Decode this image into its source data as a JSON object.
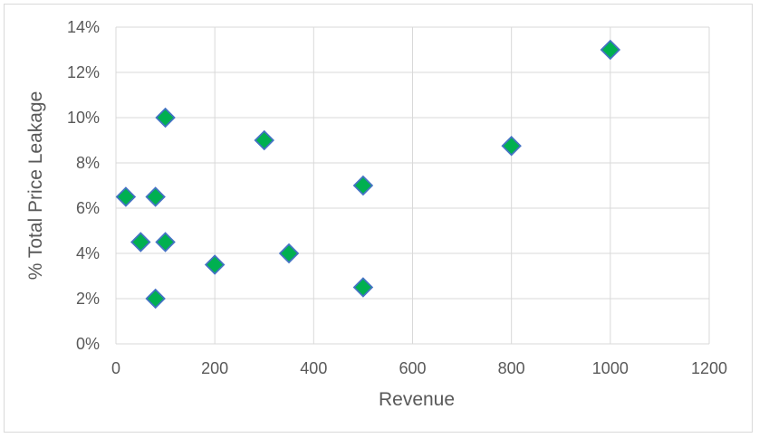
{
  "chart_data": {
    "type": "scatter",
    "xlabel": "Revenue",
    "ylabel": "% Total Price Leakage",
    "xlim": [
      0,
      1200
    ],
    "ylim": [
      0,
      0.14
    ],
    "x_ticks": [
      0,
      200,
      400,
      600,
      800,
      1000,
      1200
    ],
    "x_tick_labels": [
      "0",
      "200",
      "400",
      "600",
      "800",
      "1000",
      "1200"
    ],
    "y_ticks": [
      0,
      0.02,
      0.04,
      0.06,
      0.08,
      0.1,
      0.12,
      0.14
    ],
    "y_tick_labels": [
      "0%",
      "2%",
      "4%",
      "6%",
      "8%",
      "10%",
      "12%",
      "14%"
    ],
    "grid": true,
    "marker": "diamond",
    "marker_fill": "#00b050",
    "marker_edge": "#4472c4",
    "grid_color": "#d9d9d9",
    "series": [
      {
        "points": [
          {
            "x": 20,
            "y": 0.065
          },
          {
            "x": 50,
            "y": 0.045
          },
          {
            "x": 80,
            "y": 0.065
          },
          {
            "x": 80,
            "y": 0.02
          },
          {
            "x": 100,
            "y": 0.1
          },
          {
            "x": 100,
            "y": 0.045
          },
          {
            "x": 200,
            "y": 0.035
          },
          {
            "x": 300,
            "y": 0.09
          },
          {
            "x": 350,
            "y": 0.04
          },
          {
            "x": 500,
            "y": 0.07
          },
          {
            "x": 500,
            "y": 0.025
          },
          {
            "x": 800,
            "y": 0.0875
          },
          {
            "x": 1000,
            "y": 0.13
          }
        ]
      }
    ]
  }
}
